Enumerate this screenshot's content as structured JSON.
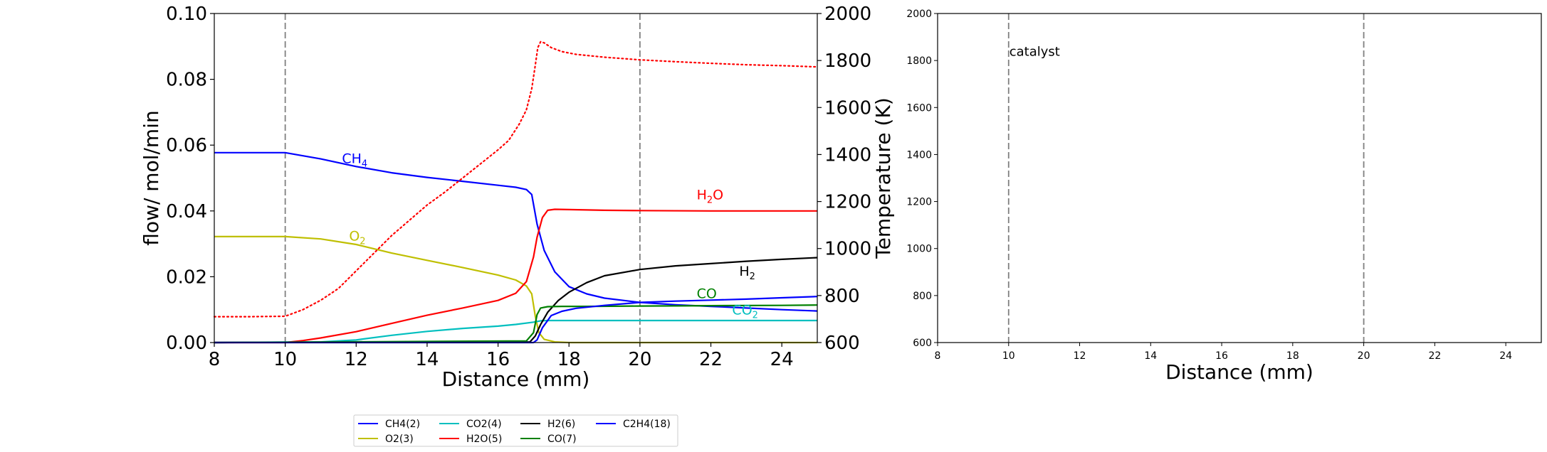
{
  "chart_data": [
    {
      "type": "line",
      "xlabel": "Distance (mm)",
      "ylabel": "flow/ mol/min",
      "y2label": "Temperature (K)",
      "xlim": [
        8,
        25
      ],
      "ylim": [
        0,
        0.1
      ],
      "y2lim": [
        600,
        2000
      ],
      "xticks": [
        "8",
        "10",
        "12",
        "14",
        "16",
        "18",
        "20",
        "22",
        "24"
      ],
      "yticks": [
        "0.00",
        "0.02",
        "0.04",
        "0.06",
        "0.08",
        "0.10"
      ],
      "y2ticks": [
        "600",
        "800",
        "1000",
        "1200",
        "1400",
        "1600",
        "1800",
        "2000"
      ],
      "vlines_x": [
        10,
        20
      ],
      "grid": false,
      "legend": {
        "placement": "below",
        "ncol": 4
      },
      "series": [
        {
          "name": "CH4(2)",
          "color": "#0000ff",
          "x": [
            8,
            10,
            11,
            12,
            13,
            14,
            15,
            16,
            16.5,
            16.8,
            16.95,
            17.1,
            17.3,
            17.6,
            18,
            18.5,
            19,
            20,
            21,
            22,
            23,
            24,
            25
          ],
          "y": [
            0.0577,
            0.0577,
            0.0558,
            0.0535,
            0.0516,
            0.0502,
            0.049,
            0.0478,
            0.0472,
            0.0465,
            0.045,
            0.036,
            0.028,
            0.0215,
            0.017,
            0.0148,
            0.0135,
            0.0122,
            0.0115,
            0.011,
            0.0105,
            0.01,
            0.0096
          ]
        },
        {
          "name": "O2(3)",
          "color": "#bfbf00",
          "x": [
            8,
            10,
            11,
            12,
            13,
            14,
            15,
            16,
            16.5,
            16.8,
            16.95,
            17.05,
            17.15,
            17.3,
            17.6,
            18,
            25
          ],
          "y": [
            0.0322,
            0.0322,
            0.0315,
            0.0298,
            0.0272,
            0.025,
            0.0228,
            0.0205,
            0.019,
            0.0172,
            0.0148,
            0.008,
            0.003,
            0.001,
            0.0002,
            0.0,
            0.0
          ]
        },
        {
          "name": "CO2(4)",
          "color": "#00bfbf",
          "x": [
            8,
            11,
            12,
            13,
            14,
            15,
            16,
            16.5,
            17,
            17.2,
            17.4,
            18,
            25
          ],
          "y": [
            0.0,
            0.0002,
            0.0008,
            0.0022,
            0.0034,
            0.0043,
            0.005,
            0.0055,
            0.0062,
            0.0066,
            0.0067,
            0.0067,
            0.0067
          ]
        },
        {
          "name": "H2O(5)",
          "color": "#ff0000",
          "x": [
            8,
            10,
            10.5,
            11,
            12,
            13,
            14,
            15,
            16,
            16.5,
            16.8,
            17,
            17.1,
            17.25,
            17.4,
            17.6,
            18,
            19,
            20,
            22,
            24,
            25
          ],
          "y": [
            0.0,
            0.0,
            0.0006,
            0.0014,
            0.0033,
            0.0058,
            0.0083,
            0.0105,
            0.0128,
            0.015,
            0.0185,
            0.026,
            0.032,
            0.038,
            0.0402,
            0.0405,
            0.0404,
            0.0402,
            0.0401,
            0.04,
            0.04,
            0.04
          ]
        },
        {
          "name": "H2(6)",
          "color": "#000000",
          "x": [
            8,
            16.9,
            17.05,
            17.2,
            17.4,
            17.7,
            18,
            18.5,
            19,
            20,
            21,
            22,
            23,
            24,
            25
          ],
          "y": [
            0.0,
            0.0002,
            0.002,
            0.0055,
            0.0092,
            0.0128,
            0.0153,
            0.0182,
            0.0203,
            0.0222,
            0.0233,
            0.024,
            0.0247,
            0.0253,
            0.0258
          ]
        },
        {
          "name": "CO(7)",
          "color": "#008000",
          "x": [
            8,
            16.8,
            17.0,
            17.1,
            17.2,
            17.4,
            17.8,
            18.5,
            20,
            22,
            24,
            25
          ],
          "y": [
            0.0,
            0.0005,
            0.003,
            0.0085,
            0.0105,
            0.0109,
            0.011,
            0.011,
            0.0111,
            0.0112,
            0.0113,
            0.0114
          ]
        },
        {
          "name": "C2H4(18)",
          "color": "#0000ff",
          "x": [
            8,
            17.0,
            17.1,
            17.25,
            17.5,
            17.8,
            18.2,
            19,
            20,
            21,
            22,
            23,
            24,
            25
          ],
          "y": [
            0.0,
            0.0,
            0.0008,
            0.0045,
            0.0082,
            0.0095,
            0.0104,
            0.0113,
            0.0122,
            0.0126,
            0.0129,
            0.0132,
            0.0136,
            0.014
          ]
        },
        {
          "name": "",
          "color": "#ff0000",
          "axis": "right",
          "dotted": true,
          "x": [
            8,
            9,
            10,
            10.5,
            11,
            11.5,
            12,
            12.5,
            13,
            13.5,
            14,
            14.5,
            15,
            15.5,
            16,
            16.3,
            16.6,
            16.8,
            16.95,
            17.05,
            17.12,
            17.2,
            17.3,
            17.5,
            17.8,
            18.2,
            19,
            20,
            21,
            22,
            23,
            24,
            25
          ],
          "y": [
            710,
            710,
            712,
            740,
            780,
            830,
            905,
            980,
            1055,
            1120,
            1185,
            1240,
            1300,
            1360,
            1420,
            1460,
            1530,
            1590,
            1680,
            1780,
            1855,
            1880,
            1875,
            1855,
            1838,
            1826,
            1814,
            1803,
            1795,
            1788,
            1782,
            1778,
            1773
          ]
        }
      ],
      "annotations": [
        {
          "base": "CH",
          "sub": "4",
          "x": 11.6,
          "y": 0.0545,
          "color": "#0000ff"
        },
        {
          "base": "O",
          "sub": "2",
          "x": 11.8,
          "y": 0.031,
          "color": "#bfbf00"
        },
        {
          "base": "H",
          "sub": "2",
          "tail": "O",
          "x": 21.6,
          "y": 0.0435,
          "color": "#ff0000"
        },
        {
          "base": "H",
          "sub": "2",
          "x": 22.8,
          "y": 0.0203,
          "color": "#000000"
        },
        {
          "base": "CO",
          "sub": "",
          "x": 21.6,
          "y": 0.0135,
          "color": "#008000"
        },
        {
          "base": "CO",
          "sub": "2",
          "x": 22.6,
          "y": 0.0085,
          "color": "#00bfbf"
        }
      ]
    },
    {
      "type": "line",
      "xlabel": "Distance (mm)",
      "ylabel": "",
      "xlim": [
        8,
        25
      ],
      "ylim": [
        600,
        2000
      ],
      "xticks": [
        "8",
        "10",
        "12",
        "14",
        "16",
        "18",
        "20",
        "22",
        "24"
      ],
      "yticks": [
        "600",
        "800",
        "1000",
        "1200",
        "1400",
        "1600",
        "1800",
        "2000"
      ],
      "vlines_x": [
        10,
        20
      ],
      "grid": false,
      "series": [],
      "annotations": [
        {
          "text": "catalyst",
          "x": 10.0,
          "y": 1820
        }
      ]
    }
  ]
}
